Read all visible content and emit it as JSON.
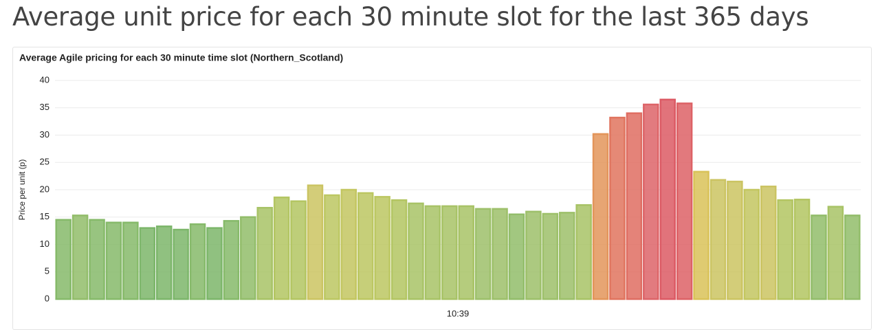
{
  "page_title": "Average unit price for each 30 minute slot for the last 365 days",
  "chart_data": {
    "type": "bar",
    "title": "Average Agile pricing for each 30 minute time slot (Northern_Scotland)",
    "ylabel": "Price per unit (p)",
    "xlabel": "10:39",
    "values": [
      14.5,
      15.3,
      14.5,
      14.0,
      14.0,
      13.0,
      13.3,
      12.7,
      13.7,
      13.0,
      14.3,
      15.0,
      16.7,
      18.6,
      17.9,
      20.8,
      19.0,
      20.0,
      19.4,
      18.7,
      18.1,
      17.5,
      17.0,
      17.0,
      17.0,
      16.5,
      16.5,
      15.5,
      16.0,
      15.6,
      15.8,
      17.2,
      30.2,
      33.2,
      34.0,
      35.6,
      36.5,
      35.8,
      23.3,
      21.8,
      21.5,
      20.0,
      20.6,
      18.1,
      18.2,
      15.3,
      16.9,
      15.3
    ],
    "colors": [
      "#86ba6a",
      "#92bd6a",
      "#86ba6a",
      "#86ba6a",
      "#86ba6a",
      "#7cb66a",
      "#7cb66a",
      "#7cb66a",
      "#86ba6a",
      "#7cb66a",
      "#86ba6a",
      "#92bd6a",
      "#a8c366",
      "#b3c562",
      "#b3c562",
      "#cbc462",
      "#bcc762",
      "#c3c660",
      "#bcc762",
      "#bcc762",
      "#b3c562",
      "#a8c366",
      "#a8c366",
      "#a8c366",
      "#a8c366",
      "#9dc06a",
      "#9dc06a",
      "#92bd6a",
      "#9dc06a",
      "#9dc06a",
      "#9dc06a",
      "#a8c366",
      "#e3955a",
      "#e0745e",
      "#df6d62",
      "#dd6468",
      "#dc5a64",
      "#dd6266",
      "#d9c258",
      "#cbc462",
      "#cbc462",
      "#c3c660",
      "#cbc462",
      "#b3c562",
      "#b3c562",
      "#92bd6a",
      "#a8c366",
      "#92bd6a"
    ],
    "ylim": [
      0,
      40
    ],
    "yticks": [
      0,
      5,
      10,
      15,
      20,
      25,
      30,
      35,
      40
    ],
    "grid": true
  }
}
